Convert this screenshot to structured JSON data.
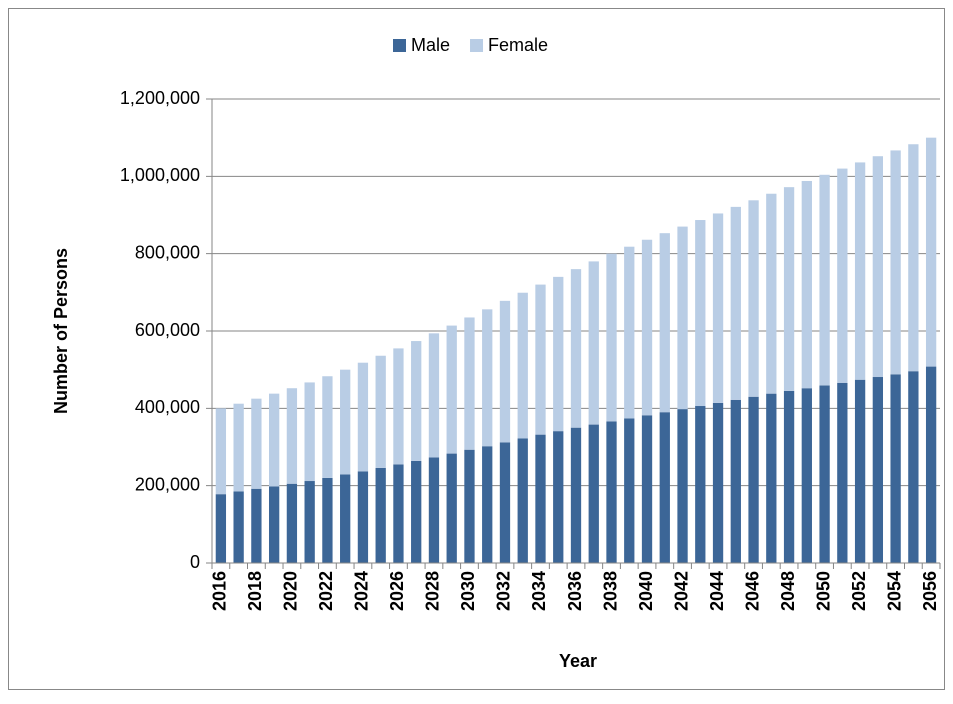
{
  "chart_data": {
    "type": "stacked_bar",
    "x_label": "Year",
    "y_label": "Number of Persons",
    "categories": [
      "2016",
      null,
      "2018",
      null,
      "2020",
      null,
      "2022",
      null,
      "2024",
      null,
      "2026",
      null,
      "2028",
      null,
      "2030",
      null,
      "2032",
      null,
      "2034",
      null,
      "2036",
      null,
      "2038",
      null,
      "2040",
      null,
      "2042",
      null,
      "2044",
      null,
      "2046",
      null,
      "2048",
      null,
      "2050",
      null,
      "2052",
      null,
      "2054",
      null,
      "2056"
    ],
    "series": [
      {
        "name": "Male",
        "color": "#3c6697",
        "values": [
          178000,
          185000,
          192000,
          198000,
          205000,
          212000,
          220000,
          229000,
          237000,
          246000,
          255000,
          264000,
          273000,
          283000,
          293000,
          302000,
          312000,
          322000,
          332000,
          341000,
          350000,
          358000,
          366000,
          374000,
          382000,
          390000,
          398000,
          406000,
          414000,
          422000,
          430000,
          438000,
          445000,
          452000,
          459000,
          466000,
          474000,
          481000,
          488000,
          496000,
          508000
        ]
      },
      {
        "name": "Female",
        "color": "#b9cde5",
        "values": [
          222000,
          227000,
          233000,
          240000,
          247000,
          255000,
          263000,
          271000,
          281000,
          290000,
          300000,
          310000,
          321000,
          331000,
          342000,
          354000,
          366000,
          377000,
          388000,
          399000,
          410000,
          422000,
          434000,
          444000,
          454000,
          463000,
          472000,
          481000,
          490000,
          499000,
          508000,
          517000,
          527000,
          536000,
          545000,
          554000,
          562000,
          571000,
          579000,
          587000,
          592000
        ]
      }
    ],
    "ylim": [
      0,
      1200000
    ],
    "yticks": [
      0,
      {
        "value": 200000,
        "label": "200,000"
      },
      {
        "value": 400000,
        "label": "400,000"
      },
      {
        "value": 600000,
        "label": "600,000"
      },
      {
        "value": 800000,
        "label": "800,000"
      },
      {
        "value": 1000000,
        "label": "1,000,000"
      },
      {
        "value": 1200000,
        "label": "1,200,000"
      }
    ],
    "grid": true,
    "legend": "top"
  }
}
